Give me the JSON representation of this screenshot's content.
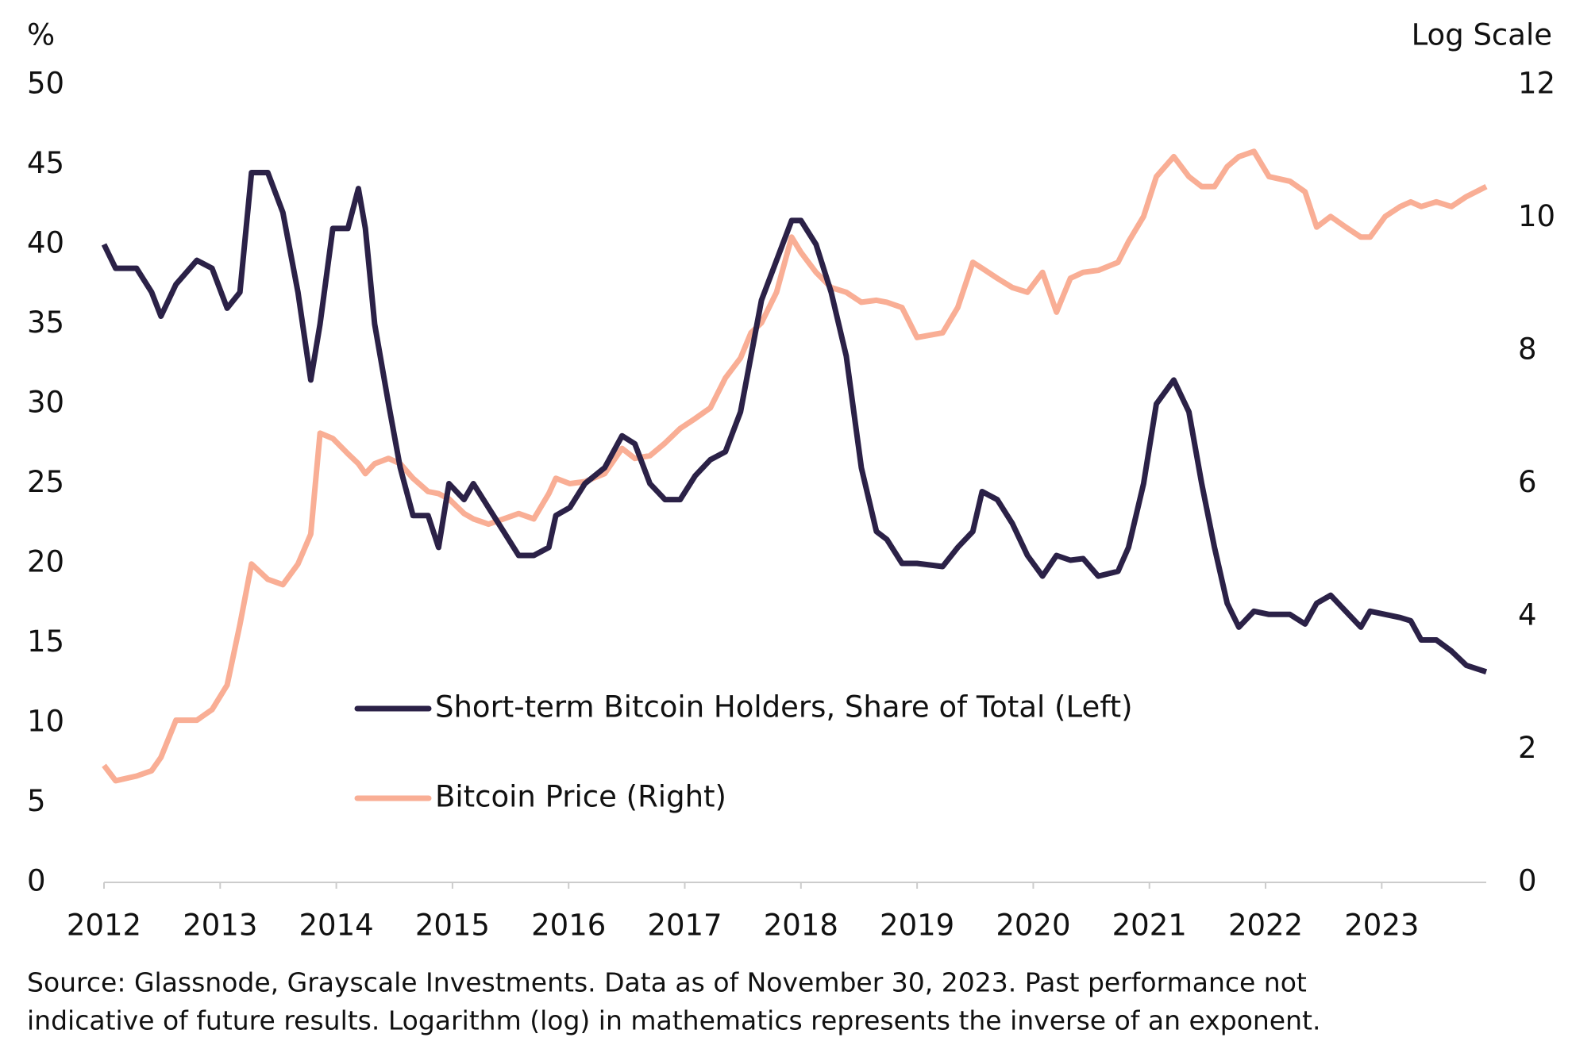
{
  "chart_data": {
    "type": "line",
    "y_label": "%",
    "y2_label": "Log Scale",
    "source": [
      "Source: Glassnode, Grayscale Investments. Data as of November 30, 2023. Past performance not",
      "indicative of future results. Logarithm (log) in mathematics represents the inverse of an exponent."
    ],
    "x": [
      2012.0,
      2012.1,
      2012.28,
      2012.41,
      2012.49,
      2012.62,
      2012.8,
      2012.93,
      2013.06,
      2013.17,
      2013.27,
      2013.41,
      2013.54,
      2013.67,
      2013.78,
      2013.86,
      2013.97,
      2014.1,
      2014.19,
      2014.25,
      2014.33,
      2014.45,
      2014.55,
      2014.66,
      2014.79,
      2014.88,
      2014.97,
      2015.1,
      2015.18,
      2015.31,
      2015.44,
      2015.57,
      2015.7,
      2015.83,
      2015.89,
      2016.01,
      2016.14,
      2016.31,
      2016.46,
      2016.57,
      2016.7,
      2016.83,
      2016.96,
      2017.09,
      2017.22,
      2017.35,
      2017.48,
      2017.57,
      2017.66,
      2017.79,
      2017.92,
      2018.0,
      2018.13,
      2018.26,
      2018.39,
      2018.52,
      2018.65,
      2018.74,
      2018.87,
      2019.0,
      2019.22,
      2019.35,
      2019.48,
      2019.56,
      2019.69,
      2019.82,
      2019.95,
      2020.08,
      2020.2,
      2020.32,
      2020.43,
      2020.56,
      2020.73,
      2020.82,
      2020.95,
      2021.06,
      2021.21,
      2021.34,
      2021.45,
      2021.56,
      2021.67,
      2021.77,
      2021.9,
      2022.03,
      2022.21,
      2022.34,
      2022.44,
      2022.56,
      2022.69,
      2022.82,
      2022.9,
      2023.03,
      2023.16,
      2023.25,
      2023.34,
      2023.47,
      2023.6,
      2023.73,
      2023.9
    ],
    "series": [
      {
        "name": "Short-term Bitcoin Holders, Share of Total (Left)",
        "color": "#2b2147",
        "axis": "y",
        "values": [
          40,
          38.5,
          38.5,
          37,
          35.5,
          37.5,
          39,
          38.5,
          36,
          37,
          44.5,
          44.5,
          42,
          37,
          31.5,
          35,
          41,
          41,
          43.5,
          41,
          35,
          30,
          26,
          23,
          23,
          21,
          25,
          24,
          25,
          23.5,
          22,
          20.5,
          20.5,
          21,
          23,
          23.5,
          25,
          26,
          28,
          27.5,
          25,
          24,
          24,
          25.5,
          26.5,
          27,
          29.5,
          33,
          36.5,
          39,
          41.5,
          41.5,
          40,
          37,
          33,
          26,
          22,
          21.5,
          20,
          20,
          19.8,
          21,
          22,
          24.5,
          24,
          22.5,
          20.5,
          19.2,
          20.5,
          20.2,
          20.3,
          19.2,
          19.5,
          21,
          25,
          30,
          31.5,
          29.5,
          25,
          21,
          17.5,
          16,
          17,
          16.8,
          16.8,
          16.2,
          17.5,
          18,
          17,
          16,
          17,
          16.8,
          16.6,
          16.4,
          15.2,
          15.2,
          14.5,
          13.6,
          13.2
        ]
      },
      {
        "name": "Bitcoin Price (Right)",
        "color": "#f9ae95",
        "axis": "y2",
        "values": [
          1.76,
          1.53,
          1.6,
          1.68,
          1.88,
          2.44,
          2.44,
          2.6,
          2.97,
          3.88,
          4.79,
          4.56,
          4.48,
          4.79,
          5.24,
          6.76,
          6.68,
          6.45,
          6.3,
          6.15,
          6.3,
          6.38,
          6.3,
          6.08,
          5.88,
          5.85,
          5.77,
          5.55,
          5.47,
          5.39,
          5.47,
          5.55,
          5.47,
          5.85,
          6.08,
          6.0,
          6.03,
          6.15,
          6.53,
          6.38,
          6.42,
          6.61,
          6.83,
          6.98,
          7.14,
          7.59,
          7.89,
          8.27,
          8.42,
          8.88,
          9.71,
          9.48,
          9.18,
          8.95,
          8.88,
          8.73,
          8.76,
          8.73,
          8.65,
          8.2,
          8.27,
          8.65,
          9.33,
          9.24,
          9.09,
          8.95,
          8.88,
          9.18,
          8.58,
          9.09,
          9.18,
          9.21,
          9.33,
          9.64,
          10.02,
          10.62,
          10.92,
          10.62,
          10.47,
          10.47,
          10.77,
          10.92,
          11.0,
          10.62,
          10.55,
          10.39,
          9.86,
          10.02,
          9.86,
          9.71,
          9.71,
          10.02,
          10.17,
          10.24,
          10.17,
          10.24,
          10.17,
          10.32,
          10.47
        ]
      }
    ],
    "xlim": [
      2012,
      2023.9
    ],
    "xticks": [
      2012,
      2013,
      2014,
      2015,
      2016,
      2017,
      2018,
      2019,
      2020,
      2021,
      2022,
      2023
    ],
    "ylim": [
      0,
      50
    ],
    "yticks": [
      0,
      5,
      10,
      15,
      20,
      25,
      30,
      35,
      40,
      45,
      50
    ],
    "y2lim": [
      0,
      12
    ],
    "y2ticks": [
      0,
      2,
      4,
      6,
      8,
      10,
      12
    ],
    "grid": false
  }
}
